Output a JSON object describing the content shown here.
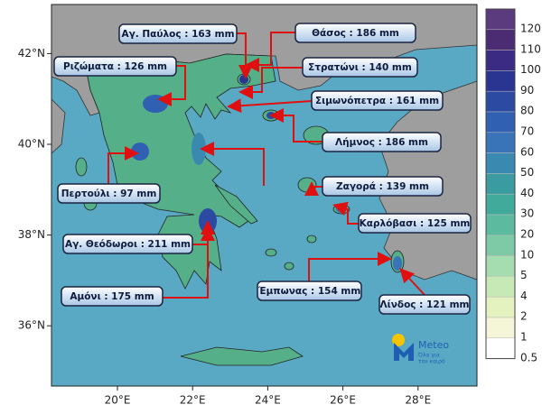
{
  "stations": [
    "Αγ. Παύλος : 163 mm",
    "Θάσος : 186 mm",
    "Ριζώματα : 126 mm",
    "Στρατώνι : 140 mm",
    "Σιμωνόπετρα : 161 mm",
    "Λήμνος : 186 mm",
    "Ζαγορά : 139 mm",
    "Περτούλι : 97 mm",
    "Καρλόβασι : 125 mm",
    "Αγ. Θεόδωροι : 211 mm",
    "Έμπωνας : 154 mm",
    "Αμόνι : 175 mm",
    "Λίνδος : 121 mm"
  ],
  "longitude_ticks": [
    {
      "value": 20,
      "label": "20°E"
    },
    {
      "value": 22,
      "label": "22°E"
    },
    {
      "value": 24,
      "label": "24°E"
    },
    {
      "value": 26,
      "label": "26°E"
    },
    {
      "value": 28,
      "label": "28°E"
    }
  ],
  "latitude_ticks": [
    {
      "value": 42,
      "label": "42°N"
    },
    {
      "value": 40,
      "label": "40°N"
    },
    {
      "value": 38,
      "label": "38°N"
    },
    {
      "value": 36,
      "label": "36°N"
    }
  ],
  "scale": {
    "values": [
      120,
      110,
      100,
      90,
      80,
      70,
      60,
      50,
      40,
      30,
      20,
      10,
      5,
      4,
      2,
      1,
      0.5
    ],
    "colors": [
      "#5b3b7d",
      "#4b2c72",
      "#3b2b82",
      "#2a3592",
      "#2c4aa2",
      "#2f60b2",
      "#3a74b8",
      "#3a89b0",
      "#3a9ba1",
      "#42aa9a",
      "#5cba9e",
      "#7fcaa6",
      "#a5dcb0",
      "#c6e9b6",
      "#e4f2c0",
      "#f5f5d8",
      "#ffffff"
    ]
  },
  "logo": {
    "name": "Meteo",
    "tagline": [
      "Όλα για",
      "τον καιρό"
    ]
  }
}
